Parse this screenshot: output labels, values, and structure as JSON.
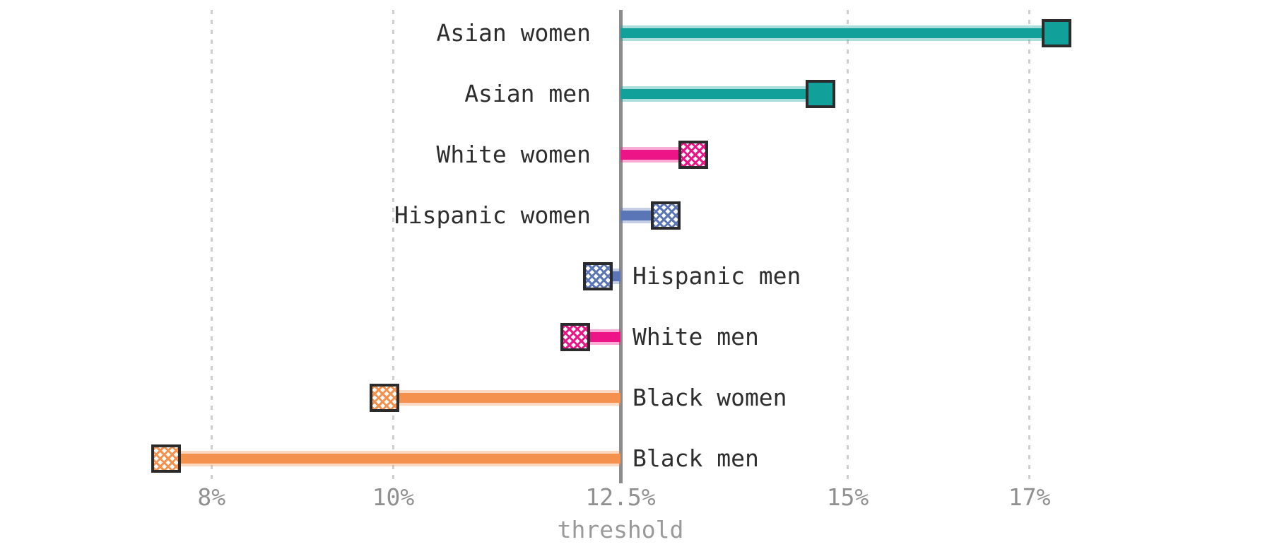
{
  "palette": {
    "background": "#ffffff",
    "gridline": "#cfcfcf",
    "threshold_line": "#8c8c8c",
    "tick_text": "#909090",
    "category_text": "#2e2e2e",
    "marker_border": "#2b2b2b",
    "teal": "#12a19a",
    "pink": "#ec1487",
    "blue": "#5a76b7",
    "orange": "#f4914e"
  },
  "chart_data": {
    "type": "bar",
    "variant": "horizontal-lollipop-from-threshold",
    "title": "",
    "xlabel": "threshold",
    "ylabel": "",
    "grid": "vertical-dashed",
    "legend": "none",
    "xlim": [
      6.9,
      18.2
    ],
    "threshold_value": 12.5,
    "x_ticks": [
      {
        "value": 8,
        "label": "8%"
      },
      {
        "value": 10,
        "label": "10%"
      },
      {
        "value": 12.5,
        "label": "12.5%"
      },
      {
        "value": 15,
        "label": "15%"
      },
      {
        "value": 17,
        "label": "17%"
      }
    ],
    "categories": [
      "Asian women",
      "Asian men",
      "White women",
      "Hispanic women",
      "Hispanic men",
      "White men",
      "Black women",
      "Black men"
    ],
    "values": [
      17.3,
      14.7,
      13.3,
      13.0,
      12.25,
      12.0,
      9.9,
      7.5
    ],
    "bar_colors": [
      "#12a19a",
      "#12a19a",
      "#ec1487",
      "#5a76b7",
      "#5a76b7",
      "#ec1487",
      "#f4914e",
      "#f4914e"
    ],
    "marker_hatched": [
      false,
      false,
      true,
      true,
      true,
      true,
      true,
      true
    ],
    "label_side": [
      "left",
      "left",
      "left",
      "left",
      "right",
      "right",
      "right",
      "right"
    ]
  }
}
